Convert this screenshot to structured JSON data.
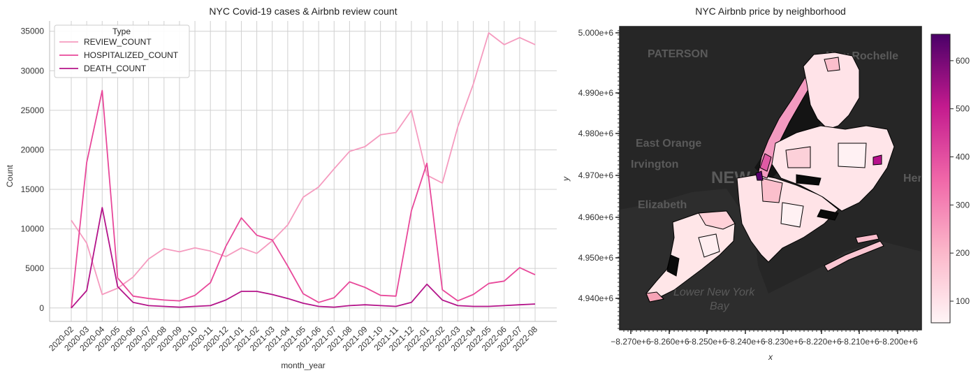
{
  "line_chart": {
    "title": "NYC Covid-19 cases & Airbnb review count",
    "xlabel": "month_year",
    "ylabel": "Count",
    "legend_title": "Type",
    "legend_placement": "top-left",
    "grid": true
  },
  "map_chart": {
    "title": "NYC Airbnb price by neighborhood",
    "xlabel": "x",
    "ylabel": "y",
    "xticks": [
      "−8.270e+6",
      "−8.260e+6",
      "−8.250e+6",
      "−8.240e+6",
      "−8.230e+6",
      "−8.220e+6",
      "−8.210e+6",
      "−8.200e+6"
    ],
    "yticks": [
      "5.000e+6",
      "4.990e+6",
      "4.980e+6",
      "4.970e+6",
      "4.960e+6",
      "4.950e+6",
      "4.940e+6"
    ],
    "colorbar_ticks": [
      "600",
      "500",
      "400",
      "300",
      "200",
      "100"
    ],
    "basemap_labels": [
      "PATERSON",
      "New Rochelle",
      "East Orange",
      "Irvington",
      "NEW",
      "Elizabeth",
      "Lower New York",
      "Bay",
      "Her"
    ]
  },
  "colors": {
    "review_count": "#f59bbf",
    "hospitalized_count": "#e8489a",
    "death_count": "#b4148a",
    "grid": "#d0d0d0",
    "map_bg": "#272727",
    "map_land": "#ffe3e6",
    "map_water": "#111111"
  },
  "chart_data": [
    {
      "type": "line",
      "title": "NYC Covid-19 cases & Airbnb review count",
      "xlabel": "month_year",
      "ylabel": "Count",
      "ylim": [
        -1700,
        36300
      ],
      "yticks": [
        0,
        5000,
        10000,
        15000,
        20000,
        25000,
        30000,
        35000
      ],
      "categories": [
        "2020-02",
        "2020-03",
        "2020-04",
        "2020-05",
        "2020-06",
        "2020-07",
        "2020-08",
        "2020-09",
        "2020-10",
        "2020-11",
        "2020-12",
        "2021-01",
        "2021-02",
        "2021-03",
        "2021-04",
        "2021-05",
        "2021-06",
        "2021-07",
        "2021-08",
        "2021-09",
        "2021-10",
        "2021-11",
        "2021-12",
        "2022-01",
        "2022-02",
        "2022-03",
        "2022-04",
        "2022-05",
        "2022-06",
        "2022-07",
        "2022-08"
      ],
      "series": [
        {
          "name": "REVIEW_COUNT",
          "values": [
            11100,
            8200,
            1700,
            2500,
            3900,
            6200,
            7500,
            7100,
            7600,
            7200,
            6500,
            7600,
            6900,
            8500,
            10500,
            14000,
            15300,
            17600,
            19800,
            20400,
            21900,
            22200,
            25000,
            16800,
            15800,
            22900,
            28300,
            34800,
            33300,
            34200,
            33300
          ]
        },
        {
          "name": "HOSPITALIZED_COUNT",
          "values": [
            0,
            18400,
            27500,
            3800,
            1500,
            1200,
            1000,
            900,
            1600,
            3200,
            7800,
            11400,
            9200,
            8600,
            5300,
            1800,
            700,
            1300,
            3300,
            2600,
            1600,
            1500,
            12300,
            18300,
            2300,
            900,
            1700,
            3100,
            3400,
            5100,
            4200
          ]
        },
        {
          "name": "DEATH_COUNT",
          "values": [
            0,
            2200,
            12700,
            2700,
            700,
            300,
            200,
            100,
            200,
            300,
            1000,
            2100,
            2100,
            1700,
            1200,
            600,
            200,
            100,
            300,
            400,
            300,
            200,
            700,
            3000,
            1000,
            300,
            200,
            200,
            300,
            400,
            500
          ]
        }
      ]
    },
    {
      "type": "heatmap",
      "title": "NYC Airbnb price by neighborhood",
      "xlabel": "x",
      "ylabel": "y",
      "xlim": [
        -8272000.0,
        -8198000.0
      ],
      "ylim": [
        4932000.0,
        5006000.0
      ],
      "colorbar_range": [
        55,
        655
      ],
      "colorscale": [
        "#fff5f6",
        "#fbb6c9",
        "#f066a8",
        "#c31a8e",
        "#4a0068"
      ]
    }
  ]
}
